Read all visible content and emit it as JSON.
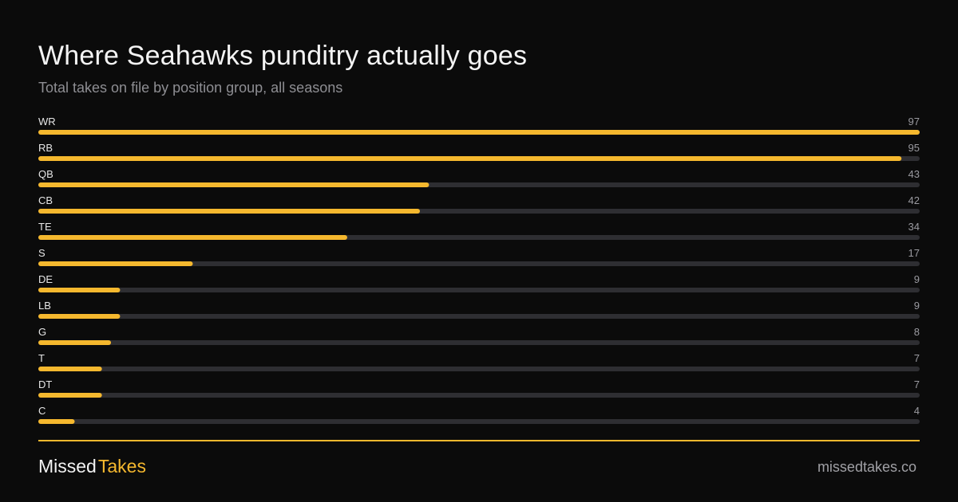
{
  "header": {
    "title": "Where Seahawks punditry actually goes",
    "subtitle": "Total takes on file by position group, all seasons"
  },
  "colors": {
    "background": "#0b0b0b",
    "bar_fill": "#f5b82e",
    "bar_track": "#2e2e32",
    "label_text": "#e6e6e6",
    "value_text": "#9a9aa0"
  },
  "chart_data": {
    "type": "bar",
    "orientation": "horizontal",
    "title": "Where Seahawks punditry actually goes",
    "subtitle": "Total takes on file by position group, all seasons",
    "categories": [
      "WR",
      "RB",
      "QB",
      "CB",
      "TE",
      "S",
      "DE",
      "LB",
      "G",
      "T",
      "DT",
      "C"
    ],
    "values": [
      97,
      95,
      43,
      42,
      34,
      17,
      9,
      9,
      8,
      7,
      7,
      4
    ],
    "xlim": [
      0,
      97
    ],
    "grid": false,
    "legend": "none"
  },
  "footer": {
    "brand_part1": "Missed",
    "brand_part2": "Takes",
    "site": "missedtakes.co"
  }
}
